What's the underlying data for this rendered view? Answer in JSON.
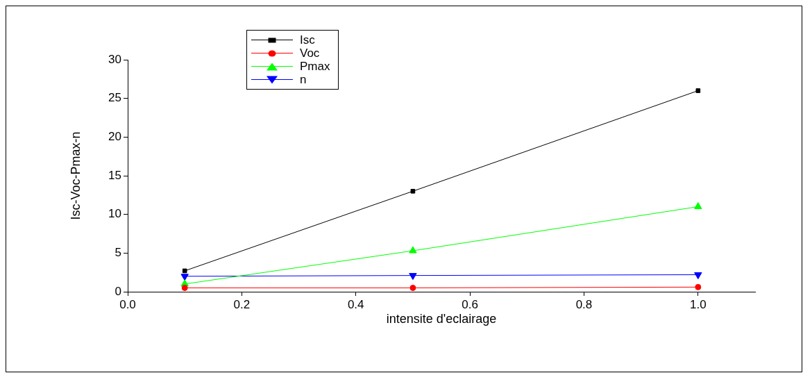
{
  "chart_data": {
    "type": "line",
    "xlabel": "intensite d'eclairage",
    "ylabel": "Isc-Voc-Pmax-n",
    "x": [
      0.1,
      0.5,
      1.0
    ],
    "series": [
      {
        "name": "Isc",
        "color": "#000000",
        "marker": "square",
        "values": [
          2.7,
          13.0,
          26.0
        ]
      },
      {
        "name": "Voc",
        "color": "#ff0000",
        "marker": "circle",
        "values": [
          0.5,
          0.5,
          0.6
        ]
      },
      {
        "name": "Pmax",
        "color": "#00ff00",
        "marker": "triangle",
        "values": [
          1.0,
          5.3,
          11.0
        ]
      },
      {
        "name": "n",
        "color": "#0000ff",
        "marker": "triangle-down",
        "values": [
          2.0,
          2.1,
          2.2
        ]
      }
    ],
    "xlim": [
      0,
      1.1
    ],
    "xticks": [
      {
        "value": 0,
        "label": "0.0"
      },
      0.2,
      0.4,
      0.6,
      0.8,
      {
        "value": 1,
        "label": "1.0"
      }
    ],
    "ylim": [
      0,
      30
    ],
    "yticks": [
      0,
      5,
      10,
      15,
      20,
      25,
      30
    ],
    "grid": false,
    "legend": "top left",
    "line_style": "solid"
  }
}
